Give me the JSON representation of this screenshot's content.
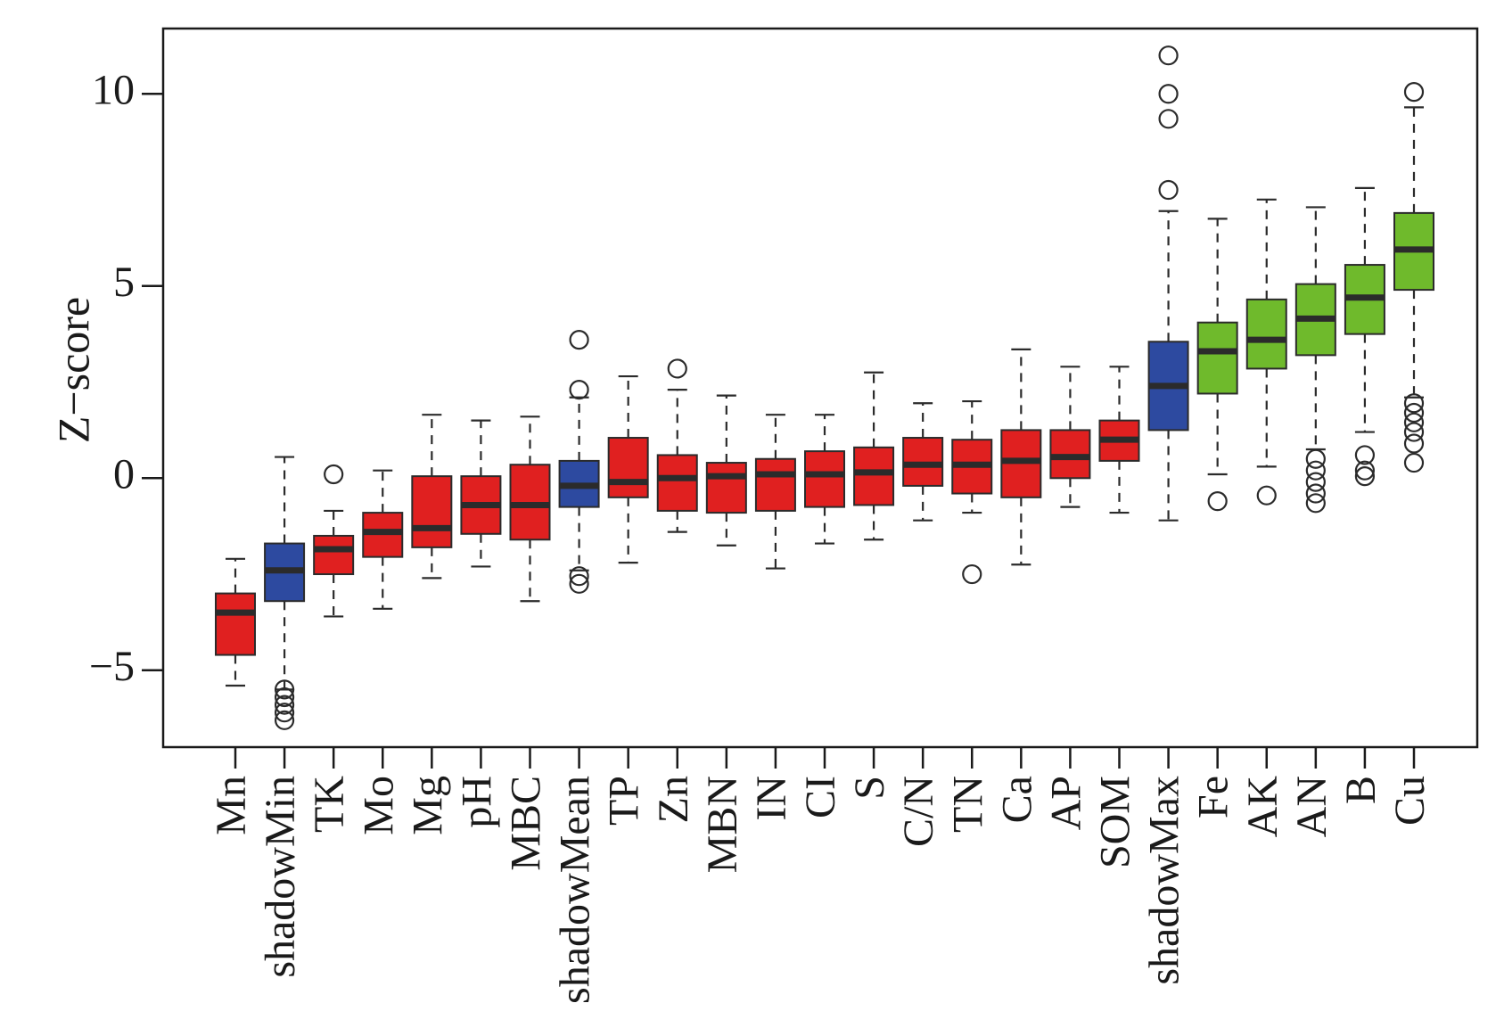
{
  "chart_data": {
    "type": "box",
    "ylabel": "Z−score",
    "ylim": [
      -7,
      11.7
    ],
    "yticks": [
      -5,
      0,
      5,
      10
    ],
    "ytick_labels": [
      "−5",
      "0",
      "5",
      "10"
    ],
    "colors": {
      "rejected": "#e02020",
      "shadow": "#2d4aa0",
      "confirmed": "#6fba2c",
      "median": "#2b2b2b",
      "outline": "#2b2b2b"
    },
    "boxes": [
      {
        "name": "Mn",
        "group": "rejected",
        "lower": -5.4,
        "q1": -4.6,
        "median": -3.5,
        "q3": -3.0,
        "upper": -2.1,
        "outliers": []
      },
      {
        "name": "shadowMin",
        "group": "shadow",
        "lower": -5.5,
        "q1": -3.2,
        "median": -2.4,
        "q3": -1.7,
        "upper": 0.55,
        "outliers": [
          -5.5,
          -5.7,
          -5.9,
          -6.1,
          -6.3
        ]
      },
      {
        "name": "TK",
        "group": "rejected",
        "lower": -3.6,
        "q1": -2.5,
        "median": -1.85,
        "q3": -1.5,
        "upper": -0.85,
        "outliers": [
          0.1
        ]
      },
      {
        "name": "Mo",
        "group": "rejected",
        "lower": -3.4,
        "q1": -2.05,
        "median": -1.4,
        "q3": -0.9,
        "upper": 0.2,
        "outliers": []
      },
      {
        "name": "Mg",
        "group": "rejected",
        "lower": -2.6,
        "q1": -1.8,
        "median": -1.3,
        "q3": 0.05,
        "upper": 1.65,
        "outliers": []
      },
      {
        "name": "pH",
        "group": "rejected",
        "lower": -2.3,
        "q1": -1.45,
        "median": -0.7,
        "q3": 0.05,
        "upper": 1.5,
        "outliers": []
      },
      {
        "name": "MBC",
        "group": "rejected",
        "lower": -3.2,
        "q1": -1.6,
        "median": -0.7,
        "q3": 0.35,
        "upper": 1.6,
        "outliers": []
      },
      {
        "name": "shadowMean",
        "group": "shadow",
        "lower": -2.4,
        "q1": -0.75,
        "median": -0.2,
        "q3": 0.45,
        "upper": 2.1,
        "outliers": [
          2.3,
          3.6,
          -2.55,
          -2.75
        ]
      },
      {
        "name": "TP",
        "group": "rejected",
        "lower": -2.2,
        "q1": -0.5,
        "median": -0.1,
        "q3": 1.05,
        "upper": 2.65,
        "outliers": []
      },
      {
        "name": "Zn",
        "group": "rejected",
        "lower": -1.4,
        "q1": -0.85,
        "median": 0.0,
        "q3": 0.6,
        "upper": 2.3,
        "outliers": [
          2.85
        ]
      },
      {
        "name": "MBN",
        "group": "rejected",
        "lower": -1.75,
        "q1": -0.9,
        "median": 0.05,
        "q3": 0.4,
        "upper": 2.15,
        "outliers": []
      },
      {
        "name": "IN",
        "group": "rejected",
        "lower": -2.35,
        "q1": -0.85,
        "median": 0.1,
        "q3": 0.5,
        "upper": 1.65,
        "outliers": []
      },
      {
        "name": "CI",
        "group": "rejected",
        "lower": -1.7,
        "q1": -0.75,
        "median": 0.1,
        "q3": 0.7,
        "upper": 1.65,
        "outliers": []
      },
      {
        "name": "S",
        "group": "rejected",
        "lower": -1.6,
        "q1": -0.7,
        "median": 0.15,
        "q3": 0.8,
        "upper": 2.75,
        "outliers": []
      },
      {
        "name": "C/N",
        "group": "rejected",
        "lower": -1.1,
        "q1": -0.2,
        "median": 0.35,
        "q3": 1.05,
        "upper": 1.95,
        "outliers": []
      },
      {
        "name": "TN",
        "group": "rejected",
        "lower": -0.9,
        "q1": -0.4,
        "median": 0.35,
        "q3": 1.0,
        "upper": 2.0,
        "outliers": [
          -2.5
        ]
      },
      {
        "name": "Ca",
        "group": "rejected",
        "lower": -2.25,
        "q1": -0.5,
        "median": 0.45,
        "q3": 1.25,
        "upper": 3.35,
        "outliers": []
      },
      {
        "name": "AP",
        "group": "rejected",
        "lower": -0.75,
        "q1": 0.0,
        "median": 0.55,
        "q3": 1.25,
        "upper": 2.9,
        "outliers": []
      },
      {
        "name": "SOM",
        "group": "rejected",
        "lower": -0.9,
        "q1": 0.45,
        "median": 1.0,
        "q3": 1.5,
        "upper": 2.9,
        "outliers": []
      },
      {
        "name": "shadowMax",
        "group": "shadow",
        "lower": -1.1,
        "q1": 1.25,
        "median": 2.4,
        "q3": 3.55,
        "upper": 6.95,
        "outliers": [
          7.5,
          9.35,
          10.0,
          11.0
        ]
      },
      {
        "name": "Fe",
        "group": "confirmed",
        "lower": 0.1,
        "q1": 2.2,
        "median": 3.3,
        "q3": 4.05,
        "upper": 6.75,
        "outliers": [
          -0.6
        ]
      },
      {
        "name": "AK",
        "group": "confirmed",
        "lower": 0.3,
        "q1": 2.85,
        "median": 3.6,
        "q3": 4.65,
        "upper": 7.25,
        "outliers": [
          -0.45
        ]
      },
      {
        "name": "AN",
        "group": "confirmed",
        "lower": 0.75,
        "q1": 3.2,
        "median": 4.15,
        "q3": 5.05,
        "upper": 7.05,
        "outliers": [
          0.5,
          0.2,
          -0.1,
          -0.4,
          -0.65
        ]
      },
      {
        "name": "B",
        "group": "confirmed",
        "lower": 1.2,
        "q1": 3.75,
        "median": 4.7,
        "q3": 5.55,
        "upper": 7.55,
        "outliers": [
          0.6,
          0.2,
          0.05
        ]
      },
      {
        "name": "Cu",
        "group": "confirmed",
        "lower": 2.1,
        "q1": 4.9,
        "median": 5.95,
        "q3": 6.9,
        "upper": 9.65,
        "outliers": [
          10.05,
          1.95,
          1.7,
          1.45,
          1.2,
          0.9,
          0.4
        ]
      }
    ]
  }
}
